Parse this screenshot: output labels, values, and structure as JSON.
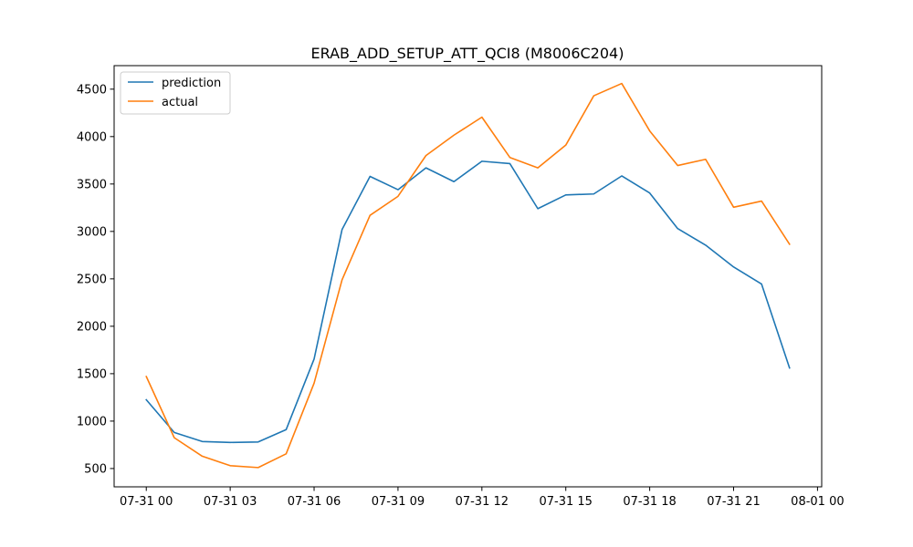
{
  "chart_data": {
    "type": "line",
    "title": "ERAB_ADD_SETUP_ATT_QCI8 (M8006C204)",
    "xlabel": "",
    "ylabel": "",
    "x": [
      0,
      1,
      2,
      3,
      4,
      5,
      6,
      7,
      8,
      9,
      10,
      11,
      12,
      13,
      14,
      15,
      16,
      17,
      18,
      19,
      20,
      21,
      22,
      23
    ],
    "x_ticks": [
      {
        "value": 0,
        "label": "07-31 00"
      },
      {
        "value": 3,
        "label": "07-31 03"
      },
      {
        "value": 6,
        "label": "07-31 06"
      },
      {
        "value": 9,
        "label": "07-31 09"
      },
      {
        "value": 12,
        "label": "07-31 12"
      },
      {
        "value": 15,
        "label": "07-31 15"
      },
      {
        "value": 18,
        "label": "07-31 18"
      },
      {
        "value": 21,
        "label": "07-31 21"
      },
      {
        "value": 24,
        "label": "08-01 00"
      }
    ],
    "y_ticks": [
      500,
      1000,
      1500,
      2000,
      2500,
      3000,
      3500,
      4000,
      4500
    ],
    "xlim": [
      -1.15,
      24.15
    ],
    "ylim": [
      307,
      4748
    ],
    "grid": false,
    "legend_position": "upper-left",
    "series": [
      {
        "name": "prediction",
        "color": "#1f77b4",
        "values": [
          1225,
          880,
          785,
          775,
          780,
          910,
          1655,
          3020,
          3580,
          3440,
          3670,
          3525,
          3740,
          3715,
          3240,
          3385,
          3395,
          3585,
          3405,
          3030,
          2855,
          2625,
          2445,
          1560
        ]
      },
      {
        "name": "actual",
        "color": "#ff7f0e",
        "values": [
          1470,
          825,
          630,
          530,
          510,
          655,
          1400,
          2490,
          3170,
          3370,
          3800,
          4015,
          4205,
          3780,
          3670,
          3910,
          4430,
          4560,
          4060,
          3695,
          3760,
          3255,
          3320,
          2865
        ]
      }
    ]
  }
}
